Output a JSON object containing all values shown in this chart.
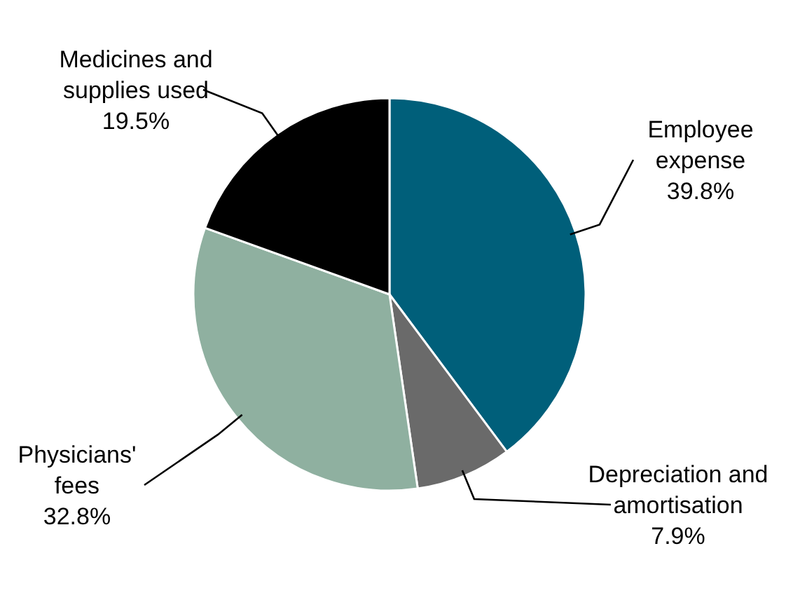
{
  "chart_data": {
    "type": "pie",
    "categories": [
      "Employee expense",
      "Depreciation and amortisation",
      "Physicians' fees",
      "Medicines and supplies used"
    ],
    "values": [
      39.8,
      7.9,
      32.8,
      19.5
    ],
    "value_labels": [
      "39.8%",
      "7.9%",
      "32.8%",
      "19.5%"
    ],
    "colors": [
      "#005f7a",
      "#6a6a6a",
      "#8fb0a0",
      "#000000"
    ]
  }
}
